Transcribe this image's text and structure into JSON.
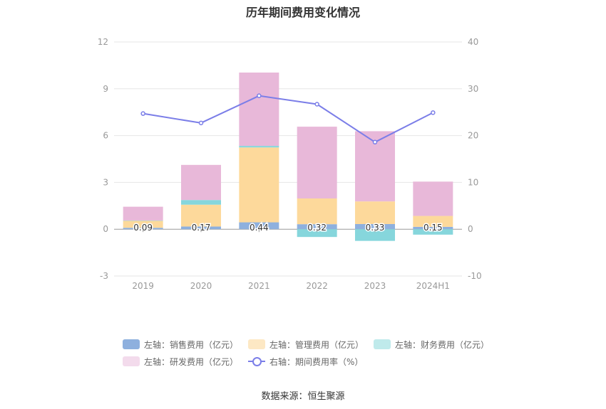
{
  "title": "历年期间费用变化情况",
  "source": "数据来源：恒生聚源",
  "colors": {
    "sales": "#8eb0de",
    "admin": "#fdd99b",
    "finance": "#86d6dc",
    "rnd": "#e8b8d9",
    "rate": "#7b7ee8",
    "legend_admin": "#fde8c4",
    "legend_finance": "#bfeaeb",
    "legend_rnd": "#f3dbec"
  },
  "chart_data": {
    "type": "bar",
    "stacked": true,
    "categories": [
      "2019",
      "2020",
      "2021",
      "2022",
      "2023",
      "2024H1"
    ],
    "left_axis": {
      "min": -3,
      "max": 12,
      "ticks": [
        -3,
        0,
        3,
        6,
        9,
        12
      ]
    },
    "right_axis": {
      "min": -10,
      "max": 40,
      "ticks": [
        -10,
        0,
        10,
        20,
        30,
        40
      ]
    },
    "series": [
      {
        "name": "左轴：销售费用（亿元）",
        "key": "sales",
        "axis": "left",
        "values": [
          0.09,
          0.17,
          0.44,
          0.32,
          0.33,
          0.15
        ]
      },
      {
        "name": "左轴：管理费用（亿元）",
        "key": "admin",
        "axis": "left",
        "values": [
          0.45,
          1.4,
          4.8,
          1.65,
          1.45,
          0.7
        ]
      },
      {
        "name": "左轴：财务费用（亿元）",
        "key": "finance",
        "axis": "left",
        "values": [
          0.02,
          0.3,
          0.1,
          -0.5,
          -0.75,
          -0.35
        ]
      },
      {
        "name": "左轴：研发费用（亿元）",
        "key": "rnd",
        "axis": "left",
        "values": [
          0.88,
          2.25,
          4.7,
          4.6,
          4.5,
          2.2
        ]
      },
      {
        "name": "右轴：期间费用率（%）",
        "key": "rate",
        "axis": "right",
        "type": "line",
        "values": [
          24.7,
          22.7,
          28.5,
          26.7,
          18.6,
          24.9
        ]
      }
    ],
    "data_labels": [
      "0.09",
      "0.17",
      "0.44",
      "0.32",
      "0.33",
      "0.15"
    ],
    "legend_position": "bottom"
  }
}
